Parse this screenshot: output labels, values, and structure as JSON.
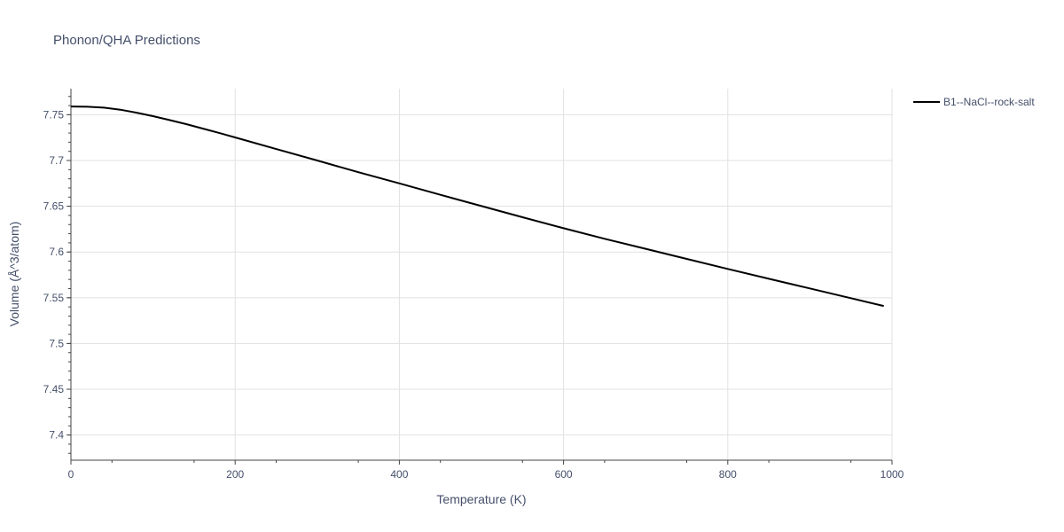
{
  "chart_data": {
    "type": "line",
    "title": "Phonon/QHA Predictions",
    "xlabel": "Temperature (K)",
    "ylabel": "Volume (Å^3/atom)",
    "xlim": [
      0,
      1000
    ],
    "ylim": [
      7.3725,
      7.7785
    ],
    "x_ticks": [
      0,
      200,
      400,
      600,
      800,
      1000
    ],
    "x_tick_labels": [
      "0",
      "200",
      "400",
      "600",
      "800",
      "1000"
    ],
    "y_ticks": [
      7.4,
      7.45,
      7.5,
      7.55,
      7.6,
      7.65,
      7.7,
      7.75
    ],
    "y_tick_labels": [
      "7.4",
      "7.45",
      "7.5",
      "7.55",
      "7.6",
      "7.65",
      "7.7",
      "7.75"
    ],
    "grid": true,
    "legend_position": "top-right",
    "series": [
      {
        "name": "B1--NaCl--rock-salt",
        "color": "#000000",
        "x": [
          0,
          20,
          40,
          60,
          80,
          100,
          120,
          140,
          160,
          180,
          200,
          250,
          300,
          350,
          400,
          450,
          500,
          550,
          600,
          650,
          700,
          750,
          800,
          850,
          900,
          950,
          990
        ],
        "y": [
          7.759,
          7.7587,
          7.7578,
          7.7555,
          7.7522,
          7.7485,
          7.7442,
          7.7398,
          7.735,
          7.7302,
          7.7252,
          7.7125,
          7.7,
          7.6872,
          7.675,
          7.6625,
          7.6502,
          7.638,
          7.626,
          7.6145,
          7.6035,
          7.5925,
          7.5815,
          7.5708,
          7.5602,
          7.5495,
          7.541
        ]
      }
    ]
  }
}
